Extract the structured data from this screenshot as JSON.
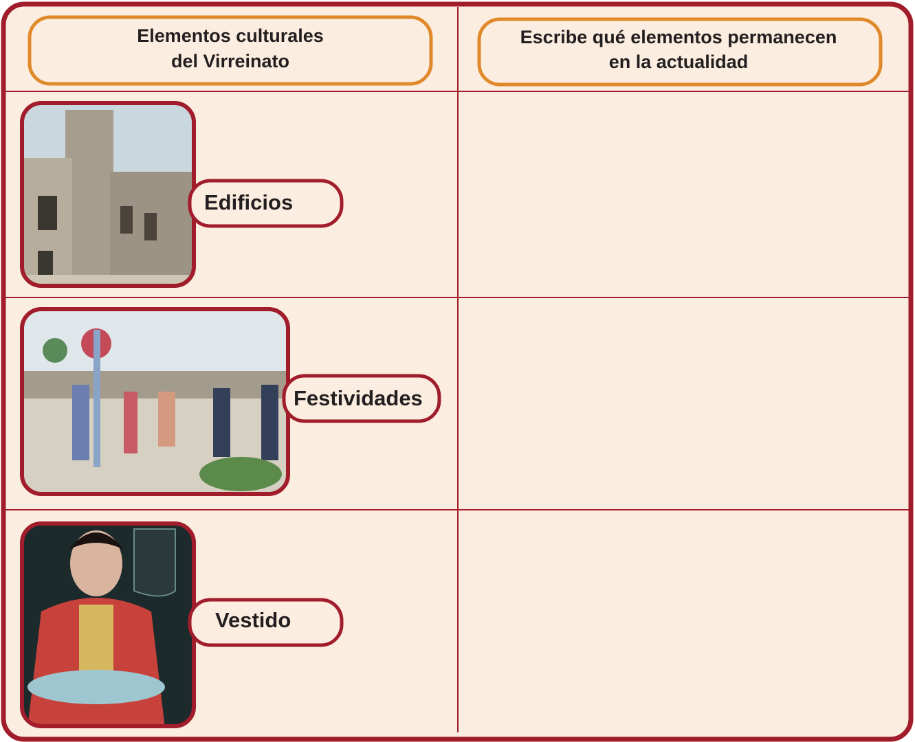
{
  "header": {
    "columns": [
      {
        "lines": [
          "Elementos culturales",
          "del Virreinato"
        ]
      },
      {
        "lines": [
          "Escribe qué elementos permanecen",
          "en la actualidad"
        ]
      }
    ]
  },
  "rows": [
    {
      "label": "Edificios"
    },
    {
      "label": "Festividades"
    },
    {
      "label": "Vestido"
    }
  ]
}
